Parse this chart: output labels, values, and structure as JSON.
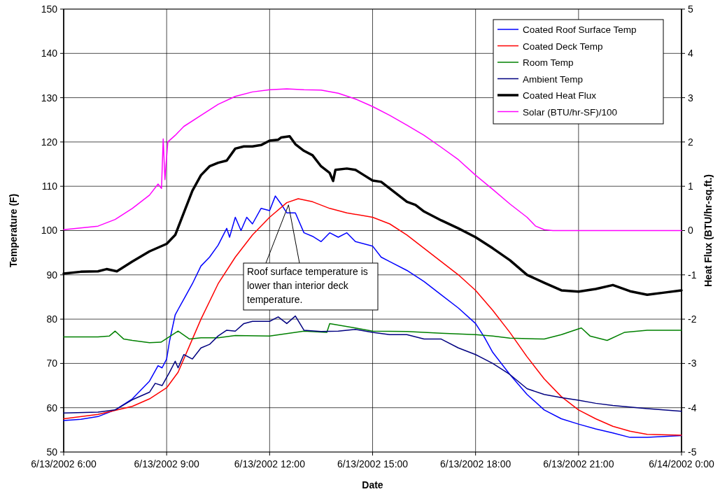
{
  "chart_data": {
    "type": "line",
    "xlabel": "Date",
    "ylabel": "Temperature (F)",
    "y2label": "Heat Flux (BTU/hr-sq.ft.)",
    "xlim": [
      "2002-06-13T06:00",
      "2002-06-14T00:00"
    ],
    "xticks": [
      {
        "value": "2002-06-13T06:00",
        "label": "6/13/2002 6:00"
      },
      {
        "value": "2002-06-13T09:00",
        "label": "6/13/2002 9:00"
      },
      {
        "value": "2002-06-13T12:00",
        "label": "6/13/2002 12:00"
      },
      {
        "value": "2002-06-13T15:00",
        "label": "6/13/2002 15:00"
      },
      {
        "value": "2002-06-13T18:00",
        "label": "6/13/2002 18:00"
      },
      {
        "value": "2002-06-13T21:00",
        "label": "6/13/2002 21:00"
      },
      {
        "value": "2002-06-14T00:00",
        "label": "6/14/2002 0:00"
      }
    ],
    "ylim": [
      50,
      150
    ],
    "yticks": [
      50,
      60,
      70,
      80,
      90,
      100,
      110,
      120,
      130,
      140,
      150
    ],
    "y2lim": [
      -5,
      5
    ],
    "y2ticks": [
      -5,
      -4,
      -3,
      -2,
      -1,
      0,
      1,
      2,
      3,
      4,
      5
    ],
    "grid": true,
    "legend": "top right",
    "line_style": "solid",
    "annotations": [
      {
        "text": "Roof surface temperature is lower than interior deck temperature.",
        "x": "2002-06-13T12:33",
        "y": 105.8
      }
    ],
    "series": [
      {
        "name": "Coated Roof Surface Temp",
        "color": "#0000ff",
        "x": [
          "2002-06-13T06:00",
          "2002-06-13T06:30",
          "2002-06-13T07:00",
          "2002-06-13T07:30",
          "2002-06-13T08:00",
          "2002-06-13T08:30",
          "2002-06-13T08:45",
          "2002-06-13T08:52",
          "2002-06-13T09:00",
          "2002-06-13T09:05",
          "2002-06-13T09:15",
          "2002-06-13T09:30",
          "2002-06-13T09:45",
          "2002-06-13T10:00",
          "2002-06-13T10:15",
          "2002-06-13T10:30",
          "2002-06-13T10:45",
          "2002-06-13T10:50",
          "2002-06-13T11:00",
          "2002-06-13T11:10",
          "2002-06-13T11:20",
          "2002-06-13T11:30",
          "2002-06-13T11:45",
          "2002-06-13T12:00",
          "2002-06-13T12:10",
          "2002-06-13T12:20",
          "2002-06-13T12:30",
          "2002-06-13T12:45",
          "2002-06-13T13:00",
          "2002-06-13T13:15",
          "2002-06-13T13:30",
          "2002-06-13T13:45",
          "2002-06-13T14:00",
          "2002-06-13T14:15",
          "2002-06-13T14:30",
          "2002-06-13T15:00",
          "2002-06-13T15:15",
          "2002-06-13T15:30",
          "2002-06-13T16:00",
          "2002-06-13T16:30",
          "2002-06-13T17:00",
          "2002-06-13T17:30",
          "2002-06-13T18:00",
          "2002-06-13T18:15",
          "2002-06-13T18:30",
          "2002-06-13T19:00",
          "2002-06-13T19:30",
          "2002-06-13T20:00",
          "2002-06-13T20:30",
          "2002-06-13T21:00",
          "2002-06-13T21:30",
          "2002-06-13T22:00",
          "2002-06-13T22:30",
          "2002-06-13T23:00",
          "2002-06-13T23:30",
          "2002-06-14T00:00"
        ],
        "values": [
          57.1,
          57.4,
          58,
          59.5,
          62,
          66,
          69.5,
          69,
          71,
          75,
          81,
          84.5,
          88,
          92,
          94,
          96.7,
          100.5,
          98.5,
          103,
          100,
          103,
          101.5,
          105,
          104.5,
          107.8,
          106,
          104,
          104,
          99.5,
          98.7,
          97.5,
          99.5,
          98.5,
          99.5,
          97.5,
          96.5,
          94,
          93,
          91,
          88.5,
          85.5,
          82.5,
          79,
          76,
          72.5,
          67.5,
          63,
          59.5,
          57.5,
          56.3,
          55.2,
          54.3,
          53.3,
          53.3,
          53.5,
          53.7
        ]
      },
      {
        "name": "Coated Deck Temp",
        "color": "#ff0000",
        "x": [
          "2002-06-13T06:00",
          "2002-06-13T07:00",
          "2002-06-13T08:00",
          "2002-06-13T08:30",
          "2002-06-13T09:00",
          "2002-06-13T09:20",
          "2002-06-13T09:40",
          "2002-06-13T10:00",
          "2002-06-13T10:30",
          "2002-06-13T11:00",
          "2002-06-13T11:30",
          "2002-06-13T12:00",
          "2002-06-13T12:30",
          "2002-06-13T12:50",
          "2002-06-13T13:15",
          "2002-06-13T13:45",
          "2002-06-13T14:15",
          "2002-06-13T15:00",
          "2002-06-13T15:30",
          "2002-06-13T16:00",
          "2002-06-13T16:30",
          "2002-06-13T17:00",
          "2002-06-13T17:30",
          "2002-06-13T18:00",
          "2002-06-13T18:30",
          "2002-06-13T19:00",
          "2002-06-13T19:30",
          "2002-06-13T20:00",
          "2002-06-13T20:30",
          "2002-06-13T21:00",
          "2002-06-13T21:30",
          "2002-06-13T22:00",
          "2002-06-13T22:30",
          "2002-06-13T23:00",
          "2002-06-14T00:00"
        ],
        "values": [
          57.5,
          58.5,
          60.3,
          62,
          64.5,
          68,
          74,
          80,
          88,
          94,
          99,
          103,
          106.3,
          107.2,
          106.5,
          105,
          104,
          103,
          101.5,
          99,
          96,
          93,
          90,
          86.5,
          82,
          77,
          71.5,
          66.5,
          62.5,
          59.5,
          57.5,
          55.8,
          54.7,
          54,
          53.8
        ]
      },
      {
        "name": "Room Temp",
        "color": "#008000",
        "x": [
          "2002-06-13T06:00",
          "2002-06-13T07:00",
          "2002-06-13T07:20",
          "2002-06-13T07:30",
          "2002-06-13T07:45",
          "2002-06-13T08:00",
          "2002-06-13T08:30",
          "2002-06-13T08:50",
          "2002-06-13T09:20",
          "2002-06-13T09:40",
          "2002-06-13T10:00",
          "2002-06-13T10:30",
          "2002-06-13T11:00",
          "2002-06-13T12:00",
          "2002-06-13T13:00",
          "2002-06-13T13:40",
          "2002-06-13T13:45",
          "2002-06-13T14:30",
          "2002-06-13T15:00",
          "2002-06-13T16:00",
          "2002-06-13T17:00",
          "2002-06-13T18:00",
          "2002-06-13T18:30",
          "2002-06-13T19:00",
          "2002-06-13T20:00",
          "2002-06-13T20:30",
          "2002-06-13T21:00",
          "2002-06-13T21:05",
          "2002-06-13T21:20",
          "2002-06-13T21:50",
          "2002-06-13T22:20",
          "2002-06-13T23:00",
          "2002-06-14T00:00"
        ],
        "values": [
          76,
          76,
          76.2,
          77.3,
          75.5,
          75.2,
          74.7,
          74.8,
          77.3,
          75.5,
          75.8,
          75.8,
          76.3,
          76.2,
          77.3,
          77,
          79,
          78,
          77.3,
          77.2,
          76.8,
          76.5,
          76.2,
          75.7,
          75.5,
          76.5,
          77.8,
          78,
          76.2,
          75.2,
          77,
          77.5,
          77.5
        ]
      },
      {
        "name": "Ambient Temp",
        "color": "#000080",
        "x": [
          "2002-06-13T06:00",
          "2002-06-13T07:00",
          "2002-06-13T07:30",
          "2002-06-13T08:00",
          "2002-06-13T08:30",
          "2002-06-13T08:40",
          "2002-06-13T08:52",
          "2002-06-13T09:05",
          "2002-06-13T09:15",
          "2002-06-13T09:20",
          "2002-06-13T09:30",
          "2002-06-13T09:45",
          "2002-06-13T10:00",
          "2002-06-13T10:15",
          "2002-06-13T10:30",
          "2002-06-13T10:45",
          "2002-06-13T11:00",
          "2002-06-13T11:15",
          "2002-06-13T11:30",
          "2002-06-13T12:00",
          "2002-06-13T12:15",
          "2002-06-13T12:30",
          "2002-06-13T12:45",
          "2002-06-13T13:00",
          "2002-06-13T13:30",
          "2002-06-13T14:00",
          "2002-06-13T14:30",
          "2002-06-13T15:00",
          "2002-06-13T15:30",
          "2002-06-13T16:00",
          "2002-06-13T16:30",
          "2002-06-13T17:00",
          "2002-06-13T17:30",
          "2002-06-13T18:00",
          "2002-06-13T18:30",
          "2002-06-13T19:00",
          "2002-06-13T19:30",
          "2002-06-13T20:00",
          "2002-06-13T20:30",
          "2002-06-13T21:00",
          "2002-06-13T21:30",
          "2002-06-13T22:00",
          "2002-06-13T23:00",
          "2002-06-14T00:00"
        ],
        "values": [
          58.8,
          59,
          59.5,
          61.8,
          63.5,
          65.5,
          65,
          68,
          70.5,
          69,
          72,
          71,
          73.5,
          74.3,
          76.2,
          77.5,
          77.3,
          79,
          79.5,
          79.5,
          80.5,
          79,
          80.7,
          77.5,
          77.2,
          77.3,
          77.7,
          77,
          76.5,
          76.5,
          75.5,
          75.5,
          73.5,
          72,
          70,
          67.5,
          64.3,
          63,
          62.3,
          61.7,
          61,
          60.5,
          59.8,
          59.2
        ]
      },
      {
        "name": "Coated Heat Flux",
        "color": "#000000",
        "axis": "y2",
        "x": [
          "2002-06-13T06:00",
          "2002-06-13T06:30",
          "2002-06-13T07:00",
          "2002-06-13T07:15",
          "2002-06-13T07:33",
          "2002-06-13T08:00",
          "2002-06-13T08:30",
          "2002-06-13T09:00",
          "2002-06-13T09:15",
          "2002-06-13T09:30",
          "2002-06-13T09:45",
          "2002-06-13T10:00",
          "2002-06-13T10:15",
          "2002-06-13T10:30",
          "2002-06-13T10:45",
          "2002-06-13T11:00",
          "2002-06-13T11:15",
          "2002-06-13T11:30",
          "2002-06-13T11:45",
          "2002-06-13T12:00",
          "2002-06-13T12:15",
          "2002-06-13T12:20",
          "2002-06-13T12:35",
          "2002-06-13T12:45",
          "2002-06-13T13:00",
          "2002-06-13T13:15",
          "2002-06-13T13:30",
          "2002-06-13T13:45",
          "2002-06-13T13:51",
          "2002-06-13T13:55",
          "2002-06-13T14:15",
          "2002-06-13T14:30",
          "2002-06-13T14:45",
          "2002-06-13T15:00",
          "2002-06-13T15:15",
          "2002-06-13T15:30",
          "2002-06-13T16:00",
          "2002-06-13T16:15",
          "2002-06-13T16:30",
          "2002-06-13T17:00",
          "2002-06-13T17:30",
          "2002-06-13T18:00",
          "2002-06-13T18:30",
          "2002-06-13T19:00",
          "2002-06-13T19:30",
          "2002-06-13T20:00",
          "2002-06-13T20:30",
          "2002-06-13T21:00",
          "2002-06-13T21:30",
          "2002-06-13T22:00",
          "2002-06-13T22:30",
          "2002-06-13T23:00",
          "2002-06-13T23:30",
          "2002-06-14T00:00"
        ],
        "values": [
          -0.97,
          -0.93,
          -0.92,
          -0.87,
          -0.92,
          -0.7,
          -0.47,
          -0.3,
          -0.1,
          0.4,
          0.9,
          1.25,
          1.45,
          1.53,
          1.58,
          1.85,
          1.9,
          1.9,
          1.93,
          2.03,
          2.05,
          2.1,
          2.13,
          1.95,
          1.8,
          1.7,
          1.45,
          1.3,
          1.12,
          1.37,
          1.4,
          1.37,
          1.25,
          1.13,
          1.1,
          0.95,
          0.65,
          0.58,
          0.43,
          0.23,
          0.05,
          -0.15,
          -0.4,
          -0.67,
          -1,
          -1.18,
          -1.35,
          -1.38,
          -1.32,
          -1.23,
          -1.37,
          -1.45,
          -1.4,
          -1.35
        ]
      },
      {
        "name": "Solar (BTU/hr-SF)/100",
        "color": "#ff00ff",
        "axis": "y2",
        "x": [
          "2002-06-13T06:00",
          "2002-06-13T07:00",
          "2002-06-13T07:30",
          "2002-06-13T08:00",
          "2002-06-13T08:30",
          "2002-06-13T08:45",
          "2002-06-13T08:51",
          "2002-06-13T08:54",
          "2002-06-13T08:57",
          "2002-06-13T09:02",
          "2002-06-13T09:15",
          "2002-06-13T09:30",
          "2002-06-13T10:00",
          "2002-06-13T10:30",
          "2002-06-13T11:00",
          "2002-06-13T11:30",
          "2002-06-13T12:00",
          "2002-06-13T12:30",
          "2002-06-13T13:00",
          "2002-06-13T13:30",
          "2002-06-13T14:00",
          "2002-06-13T14:30",
          "2002-06-13T15:00",
          "2002-06-13T15:30",
          "2002-06-13T16:00",
          "2002-06-13T16:30",
          "2002-06-13T17:00",
          "2002-06-13T17:30",
          "2002-06-13T18:00",
          "2002-06-13T18:30",
          "2002-06-13T19:00",
          "2002-06-13T19:30",
          "2002-06-13T19:45",
          "2002-06-13T20:00",
          "2002-06-13T20:15",
          "2002-06-14T00:00"
        ],
        "values": [
          0.02,
          0.1,
          0.25,
          0.5,
          0.8,
          1.05,
          0.95,
          2.07,
          1.15,
          2,
          2.15,
          2.35,
          2.6,
          2.85,
          3.03,
          3.13,
          3.18,
          3.2,
          3.18,
          3.17,
          3.1,
          2.97,
          2.8,
          2.6,
          2.38,
          2.15,
          1.88,
          1.6,
          1.25,
          0.93,
          0.6,
          0.3,
          0.1,
          0.02,
          0,
          0
        ]
      }
    ]
  }
}
